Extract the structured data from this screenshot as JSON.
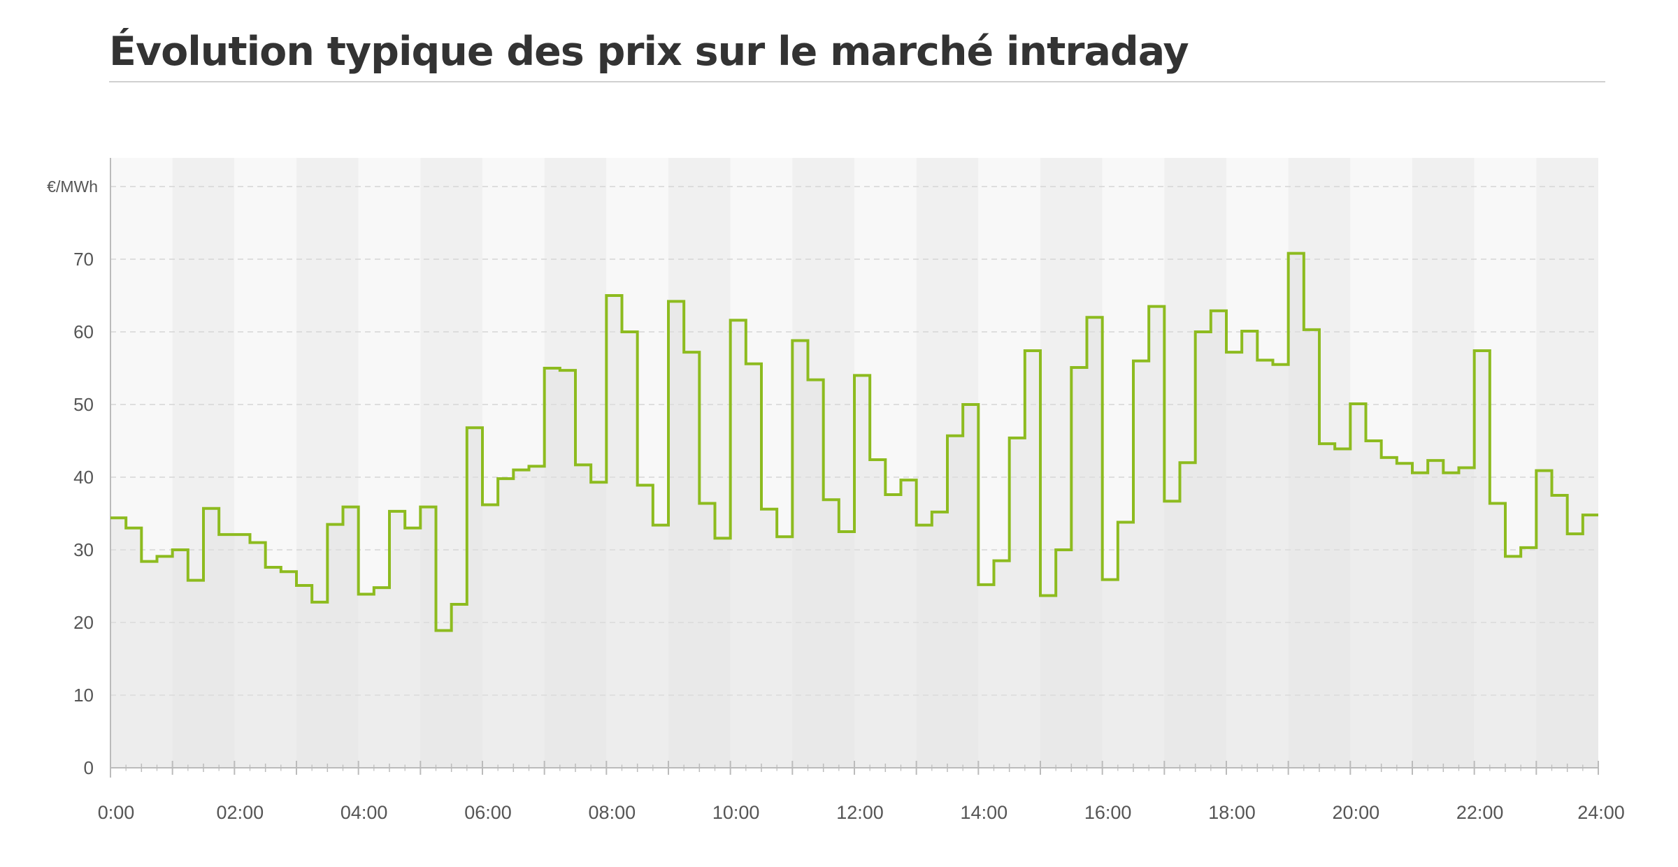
{
  "chart_data": {
    "type": "line",
    "step": true,
    "title": "Évolution typique des prix sur le marché intraday",
    "xlabel": "",
    "ylabel": "€/MWh",
    "ylim": [
      0,
      80
    ],
    "yticks": [
      0,
      10,
      20,
      30,
      40,
      50,
      60,
      70
    ],
    "xlim": [
      0,
      24
    ],
    "xtick_labels": [
      "0:00",
      "02:00",
      "04:00",
      "06:00",
      "08:00",
      "10:00",
      "12:00",
      "14:00",
      "16:00",
      "18:00",
      "20:00",
      "22:00",
      "24:00"
    ],
    "resolution_hours": 0.25,
    "grid": true,
    "legend": "none",
    "series": [
      {
        "values": [
          34.4,
          33.0,
          28.4,
          29.1,
          30.0,
          25.8,
          35.7,
          32.1,
          32.1,
          31.0,
          27.6,
          27.0,
          25.1,
          22.8,
          33.5,
          35.9,
          23.9,
          24.8,
          35.3,
          33.0,
          35.9,
          18.9,
          22.5,
          46.8,
          36.2,
          39.8,
          41.0,
          41.5,
          55.0,
          54.7,
          41.7,
          39.3,
          65.0,
          60.0,
          38.9,
          33.4,
          64.2,
          57.2,
          36.4,
          31.6,
          61.6,
          55.6,
          35.6,
          31.8,
          58.8,
          53.4,
          36.9,
          32.5,
          54.0,
          42.4,
          37.6,
          39.6,
          33.4,
          35.2,
          45.7,
          50.0,
          25.2,
          28.5,
          45.4,
          57.4,
          23.7,
          30.0,
          55.1,
          62.0,
          25.9,
          33.8,
          56.0,
          63.5,
          36.7,
          42.0,
          60.0,
          62.9,
          57.2,
          60.1,
          56.1,
          55.5,
          70.8,
          60.3,
          44.6,
          43.9,
          50.1,
          45.0,
          42.7,
          41.9,
          40.6,
          42.3,
          40.6,
          41.3,
          57.4,
          36.4,
          29.1,
          30.3,
          40.9,
          37.5,
          32.2,
          34.8
        ]
      }
    ],
    "colors": {
      "line": "#8dbb1f",
      "fill": "#e0e0e0",
      "band_dark": "#f0f0f0",
      "band_light": "#f8f8f8",
      "grid": "#d6d6d6",
      "axis": "#bbbbbb",
      "tick_text": "#555555",
      "title": "#333333"
    }
  }
}
